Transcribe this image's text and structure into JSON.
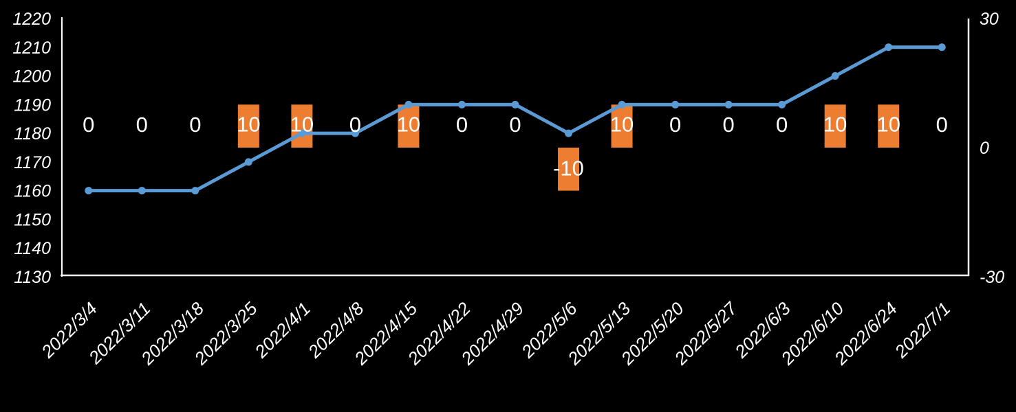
{
  "window": {
    "background": "#000000",
    "text_color": "#FFFFFF"
  },
  "chart_data": {
    "type": "combo",
    "title": "",
    "categories": [
      "2022/3/4",
      "2022/3/11",
      "2022/3/18",
      "2022/3/25",
      "2022/4/1",
      "2022/4/8",
      "2022/4/15",
      "2022/4/22",
      "2022/4/29",
      "2022/5/6",
      "2022/5/13",
      "2022/5/20",
      "2022/5/27",
      "2022/6/3",
      "2022/6/10",
      "2022/6/24",
      "2022/7/1"
    ],
    "series": [
      {
        "name": "level-line",
        "type": "line",
        "axis": "left",
        "color": "#5B9BD5",
        "marker": "circle",
        "values": [
          1160,
          1160,
          1160,
          1170,
          1180,
          1180,
          1190,
          1190,
          1190,
          1180,
          1190,
          1190,
          1190,
          1190,
          1200,
          1210,
          1210
        ]
      },
      {
        "name": "weekly-change-bars",
        "type": "bar",
        "axis": "right",
        "color": "#ED7D31",
        "data_labels": true,
        "values": [
          0,
          0,
          0,
          10,
          10,
          0,
          10,
          0,
          0,
          -10,
          10,
          0,
          0,
          0,
          10,
          10,
          0
        ],
        "label_texts": [
          "0",
          "0",
          "0",
          "10",
          "10",
          "0",
          "10",
          "0",
          "0",
          "-10",
          "10",
          "0",
          "0",
          "0",
          "10",
          "10",
          "0"
        ]
      }
    ],
    "left_axis": {
      "min": 1130,
      "max": 1220,
      "ticks": [
        1220,
        1210,
        1200,
        1190,
        1180,
        1170,
        1160,
        1150,
        1140,
        1130
      ],
      "label_style": "italic"
    },
    "right_axis": {
      "min": -30,
      "max": 30,
      "ticks": [
        30,
        0,
        -30
      ],
      "label_style": "italic"
    },
    "x_axis": {
      "label_rotation_deg": -45,
      "label_style": "italic"
    },
    "grid": false,
    "legend": false,
    "axis_line_color": "#FFFFFF",
    "label_color": "#FFFFFF"
  }
}
